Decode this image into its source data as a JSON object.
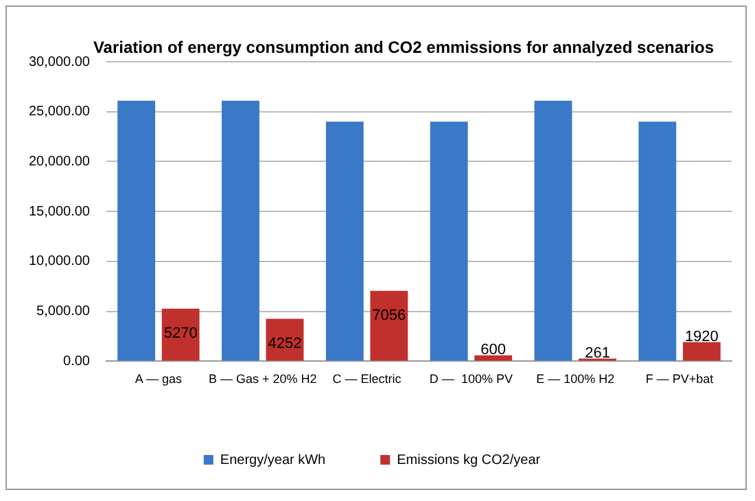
{
  "chart_data": {
    "type": "bar",
    "title": "Variation of energy consumption and CO2 emmissions for annalyzed scenarios",
    "categories": [
      "A — gas",
      "B — Gas + 20% H2",
      "C — Electric",
      "D —  100% PV",
      "E — 100% H2",
      "F — PV+bat"
    ],
    "series": [
      {
        "name": "Energy/year kWh",
        "color": "#3a78c8",
        "values": [
          26100,
          26100,
          24000,
          24000,
          26100,
          24000
        ]
      },
      {
        "name": "Emissions kg CO2/year",
        "color": "#c0302c",
        "values": [
          5270,
          4252,
          7056,
          600,
          261,
          1920
        ],
        "value_labels": [
          "5270",
          "4252",
          "7056",
          "600",
          "261",
          "1920"
        ]
      }
    ],
    "ylim": [
      0,
      30000
    ],
    "yticks": [
      {
        "value": 0,
        "label": "0.00"
      },
      {
        "value": 5000,
        "label": "5,000.00"
      },
      {
        "value": 10000,
        "label": "10,000.00"
      },
      {
        "value": 15000,
        "label": "15,000.00"
      },
      {
        "value": 20000,
        "label": "20,000.00"
      },
      {
        "value": 25000,
        "label": "25,000.00"
      },
      {
        "value": 30000,
        "label": "30,000.00"
      }
    ],
    "grid": "y",
    "legend": "bottom"
  }
}
